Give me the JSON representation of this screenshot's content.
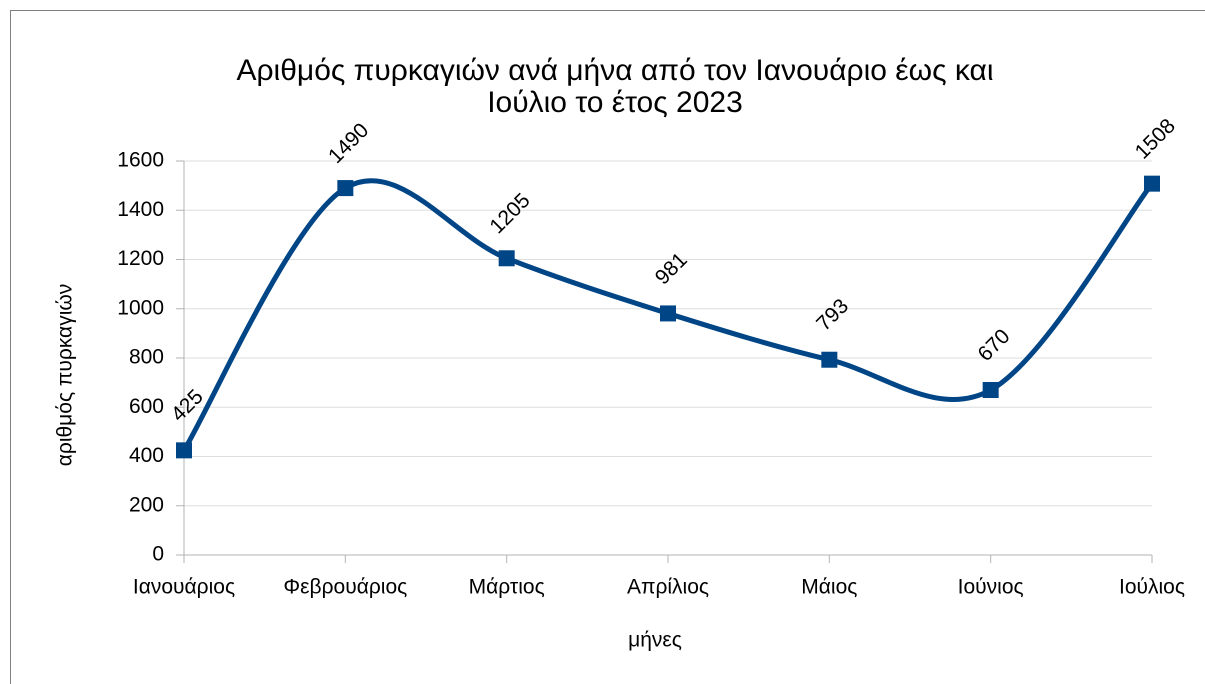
{
  "chart_data": {
    "type": "line",
    "title": "Αριθμός πυρκαγιών ανά μήνα από τον Ιανουάριο έως και",
    "subtitle": "Ιούλιο το έτος 2023",
    "x_label": "μήνες",
    "y_label": "αριθμός πυρκαγιών",
    "categories": [
      "Ιανουάριος",
      "Φεβρουάριος",
      "Μάρτιος",
      "Απρίλιος",
      "Μάιος",
      "Ιούνιος",
      "Ιούλιος"
    ],
    "series": [
      {
        "name": "αριθμός πυρκαγιών",
        "color": "#004586",
        "values": [
          425,
          1490,
          1205,
          981,
          793,
          670,
          1508
        ]
      }
    ],
    "ylim": [
      0,
      1600
    ],
    "yticks": [
      0,
      200,
      400,
      600,
      800,
      1000,
      1200,
      1400,
      1600
    ],
    "grid": true,
    "smooth": true,
    "marker": "square"
  }
}
